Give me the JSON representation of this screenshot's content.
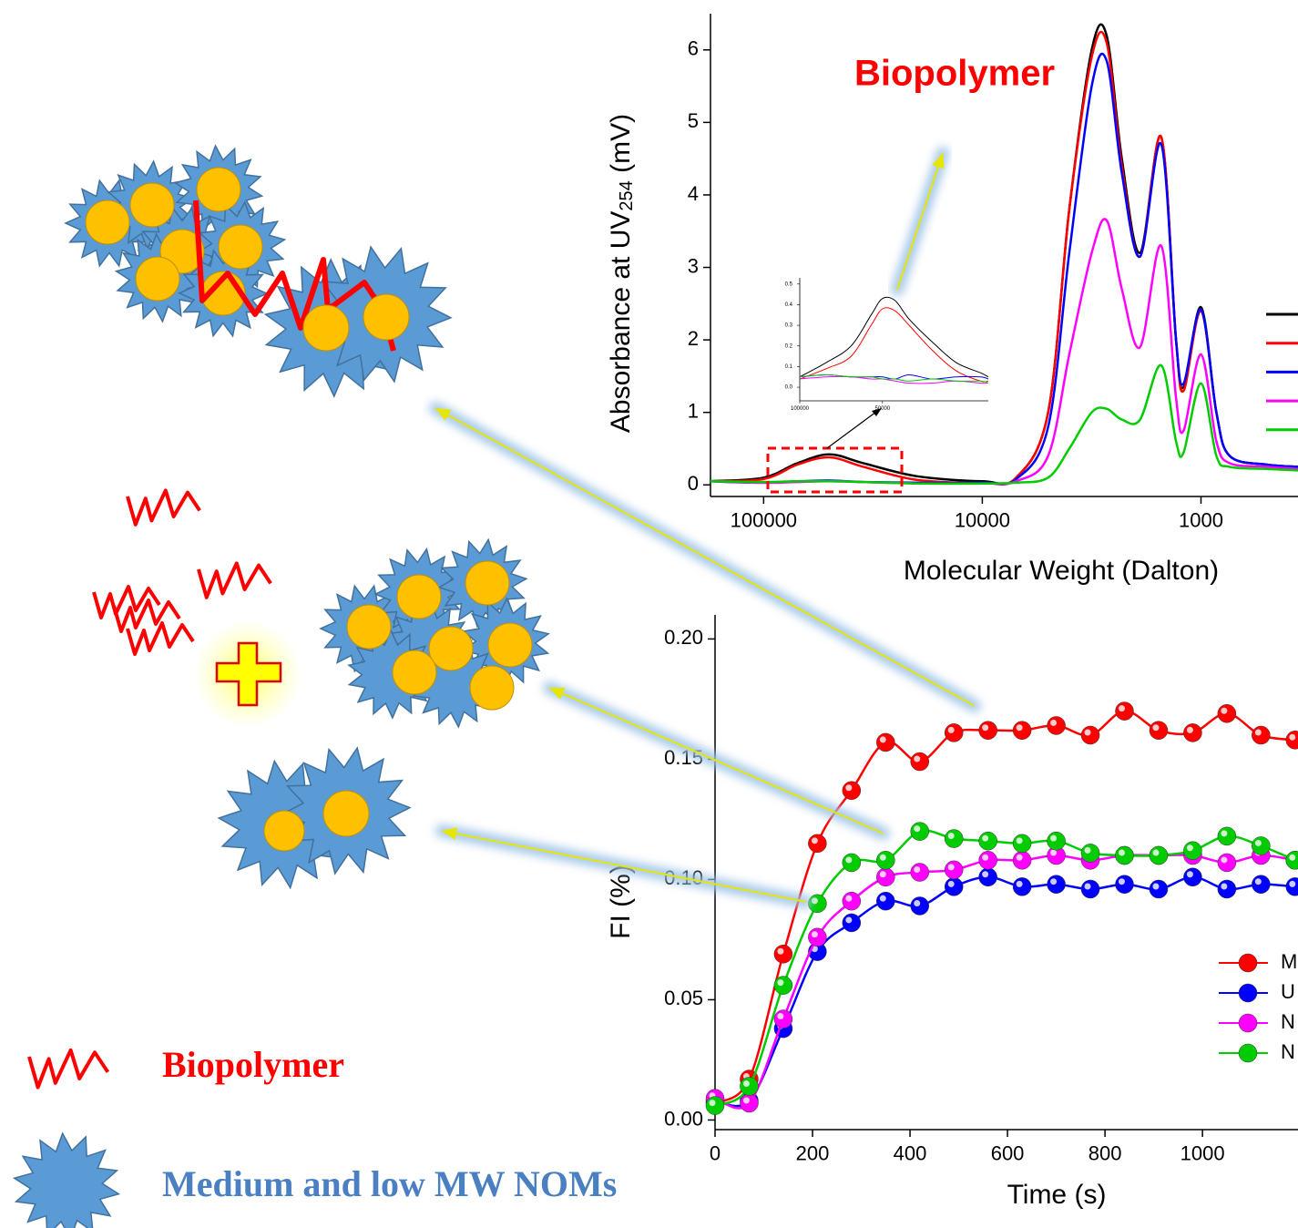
{
  "chart_data": [
    {
      "type": "line",
      "annotation": "Biopolymer",
      "x_label": "Molecular Weight (Dalton)",
      "y_label": [
        "Absorbance at UV",
        "254",
        " (mV)"
      ],
      "log_x": true,
      "xlim": [
        175000,
        360
      ],
      "xticks": [
        100000,
        10000,
        1000
      ],
      "ylim": [
        -0.16,
        6.5
      ],
      "yticks": [
        0,
        1,
        2,
        3,
        4,
        5,
        6
      ],
      "x": [
        175000,
        100000,
        70000,
        50000,
        35000,
        20000,
        10000,
        7000,
        5000,
        4000,
        3160,
        2700,
        2300,
        1900,
        1520,
        1300,
        1200,
        1000,
        850,
        740,
        500,
        360
      ],
      "series": [
        {
          "color": "#000000",
          "values": [
            0.05,
            0.1,
            0.3,
            0.42,
            0.3,
            0.12,
            0.05,
            0.1,
            1.0,
            3.8,
            6.0,
            6.2,
            4.5,
            3.2,
            4.8,
            2.0,
            1.35,
            2.45,
            1.0,
            0.4,
            0.28,
            0.25
          ]
        },
        {
          "color": "#ff0000",
          "values": [
            0.05,
            0.08,
            0.28,
            0.38,
            0.25,
            0.07,
            0.03,
            0.1,
            1.0,
            3.8,
            5.9,
            6.1,
            4.4,
            3.15,
            4.8,
            2.0,
            1.3,
            2.4,
            1.0,
            0.4,
            0.28,
            0.25
          ]
        },
        {
          "color": "#0000ff",
          "values": [
            0.05,
            0.03,
            0.05,
            0.06,
            0.04,
            0.03,
            0.03,
            0.08,
            0.8,
            3.2,
            5.5,
            5.85,
            4.3,
            3.15,
            4.7,
            2.0,
            1.4,
            2.42,
            1.0,
            0.4,
            0.28,
            0.25
          ]
        },
        {
          "color": "#ff00ff",
          "values": [
            0.05,
            0.03,
            0.04,
            0.05,
            0.04,
            0.02,
            0.02,
            0.05,
            0.4,
            1.8,
            3.2,
            3.65,
            2.7,
            1.9,
            3.3,
            1.2,
            0.75,
            1.8,
            0.6,
            0.3,
            0.25,
            0.22
          ]
        },
        {
          "color": "#00cc00",
          "values": [
            0.05,
            0.04,
            0.05,
            0.05,
            0.04,
            0.02,
            0.02,
            0.03,
            0.1,
            0.5,
            1.0,
            1.05,
            0.9,
            0.9,
            1.65,
            0.6,
            0.45,
            1.4,
            0.4,
            0.25,
            0.22,
            0.2
          ]
        }
      ]
    },
    {
      "type": "line_markers",
      "x_label": "Time (s)",
      "y_label": "FI (%)",
      "xlim": [
        0,
        1196
      ],
      "xticks": [
        0,
        200,
        400,
        600,
        800,
        1000
      ],
      "ylim": [
        -0.004,
        0.21
      ],
      "yticks": [
        {
          "value": 0,
          "label": "0.00"
        },
        {
          "value": 0.05,
          "label": "0.05"
        },
        {
          "value": 0.1,
          "label": "0.10"
        },
        {
          "value": 0.15,
          "label": "0.15"
        },
        {
          "value": 0.2,
          "label": "0.20"
        }
      ],
      "x": [
        0,
        70,
        140,
        210,
        280,
        350,
        420,
        490,
        560,
        630,
        700,
        770,
        840,
        910,
        980,
        1050,
        1120,
        1190
      ],
      "series": [
        {
          "name": "M",
          "color": "#ff0000",
          "values": [
            0.007,
            0.017,
            0.069,
            0.115,
            0.137,
            0.157,
            0.149,
            0.161,
            0.162,
            0.162,
            0.164,
            0.16,
            0.17,
            0.162,
            0.161,
            0.169,
            0.16,
            0.158
          ]
        },
        {
          "name": "U",
          "color": "#0000ff",
          "values": [
            0.008,
            0.008,
            0.038,
            0.07,
            0.082,
            0.091,
            0.089,
            0.097,
            0.101,
            0.097,
            0.098,
            0.096,
            0.098,
            0.096,
            0.101,
            0.096,
            0.098,
            0.097
          ]
        },
        {
          "name": "N",
          "color": "#ff00ff",
          "values": [
            0.009,
            0.007,
            0.042,
            0.076,
            0.091,
            0.101,
            0.103,
            0.104,
            0.108,
            0.108,
            0.11,
            0.108,
            0.11,
            0.11,
            0.11,
            0.107,
            0.11,
            0.108
          ]
        },
        {
          "name": "N",
          "color": "#00cc00",
          "values": [
            0.006,
            0.014,
            0.056,
            0.09,
            0.107,
            0.108,
            0.12,
            0.117,
            0.116,
            0.115,
            0.116,
            0.111,
            0.11,
            0.11,
            0.112,
            0.118,
            0.114,
            0.108
          ]
        }
      ]
    },
    {
      "type": "line",
      "log_x": true,
      "xlim": [
        100000,
        20600
      ],
      "xticks": [
        100000,
        50000
      ],
      "ylim": [
        -0.066,
        0.53
      ],
      "yticks": [
        {
          "value": 0,
          "label": "0.0"
        },
        0.1,
        0.2,
        0.3,
        0.4,
        0.5
      ],
      "x": [
        100000,
        80000,
        65000,
        55000,
        50000,
        45000,
        40000,
        33000,
        27000,
        22000,
        20600
      ],
      "series": [
        {
          "color": "#000000",
          "values": [
            0.05,
            0.12,
            0.2,
            0.35,
            0.43,
            0.42,
            0.33,
            0.22,
            0.12,
            0.07,
            0.05
          ]
        },
        {
          "color": "#ff0000",
          "values": [
            0.04,
            0.09,
            0.15,
            0.3,
            0.38,
            0.37,
            0.3,
            0.18,
            0.08,
            0.03,
            0.03
          ]
        },
        {
          "color": "#0000ff",
          "values": [
            0.05,
            0.06,
            0.05,
            0.05,
            0.05,
            0.04,
            0.06,
            0.04,
            0.05,
            0.05,
            0.04
          ]
        },
        {
          "color": "#ff00ff",
          "values": [
            0.04,
            0.05,
            0.05,
            0.04,
            0.04,
            0.03,
            0.02,
            0.02,
            0.03,
            0.02,
            0.02
          ]
        },
        {
          "color": "#00cc00",
          "values": [
            0.05,
            0.06,
            0.05,
            0.05,
            0.04,
            0.04,
            0.03,
            0.04,
            0.03,
            0.03,
            0.02
          ]
        }
      ]
    }
  ],
  "diagram": {
    "legend": [
      "Biopolymer",
      "Medium and low MW NOMs"
    ]
  }
}
